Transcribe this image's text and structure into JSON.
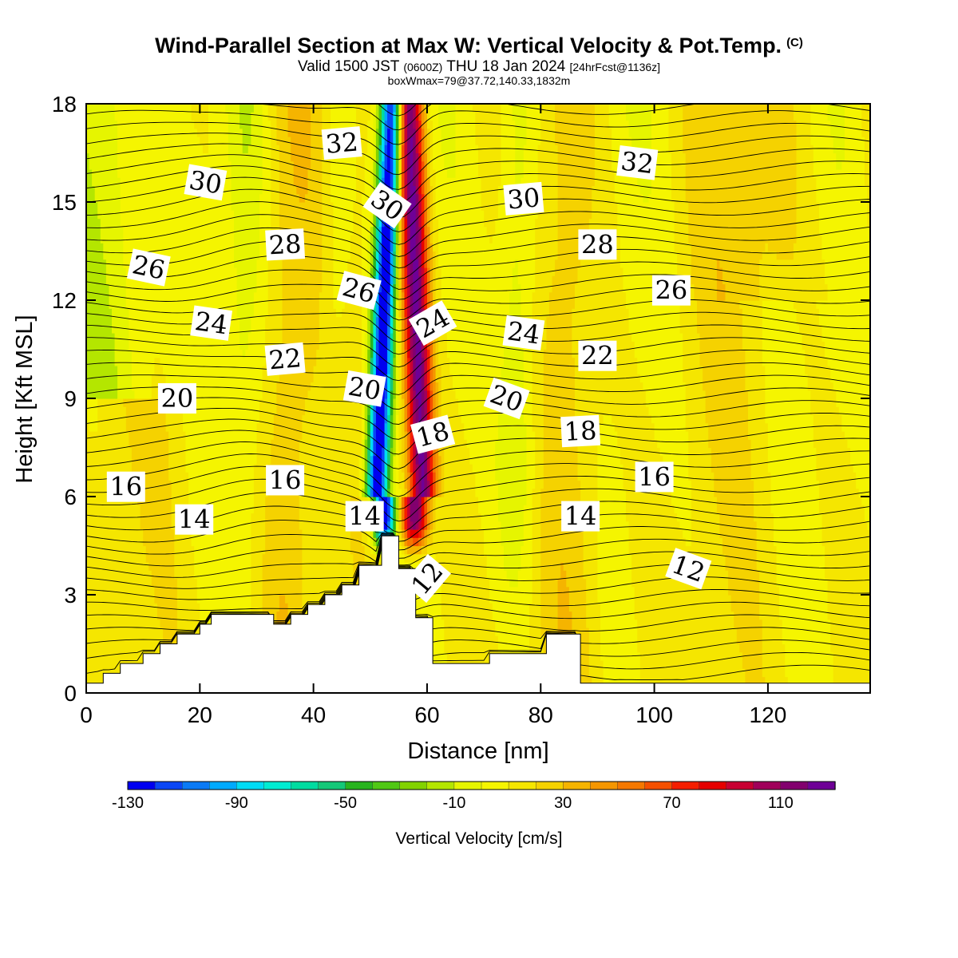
{
  "title": {
    "main": "Wind-Parallel Section at Max W: Vertical Velocity & Pot.Temp.",
    "copyright": "(C)",
    "valid_prefix": "Valid 1500 JST",
    "valid_utc": "(0600Z)",
    "valid_date": "THU 18 Jan 2024",
    "forecast": "[24hrFcst@1136z]",
    "box": "boxWmax=79@37.72,140.33,1832m"
  },
  "chart_data": {
    "type": "heatmap",
    "xlabel": "Distance [nm]",
    "ylabel": "Height [Kft MSL]",
    "xlim": [
      0,
      138
    ],
    "ylim": [
      0,
      18
    ],
    "xticks": [
      0,
      20,
      40,
      60,
      80,
      100,
      120
    ],
    "yticks": [
      0,
      3,
      6,
      9,
      12,
      15,
      18
    ],
    "colorbar": {
      "label": "Vertical Velocity [cm/s]",
      "tick_labels": [
        "-130",
        "-90",
        "-50",
        "-10",
        "30",
        "70",
        "110"
      ],
      "tick_values": [
        -130,
        -90,
        -50,
        -10,
        30,
        70,
        110
      ],
      "range": [
        -130,
        130
      ],
      "interval": 10,
      "colors": [
        "#0000f0",
        "#0a46f5",
        "#0a7af5",
        "#00aaff",
        "#00dcf5",
        "#00ecd2",
        "#00dca0",
        "#14c878",
        "#28b41e",
        "#50c814",
        "#82d200",
        "#b4e600",
        "#e6f500",
        "#f5f500",
        "#f5e600",
        "#f5d200",
        "#f5b400",
        "#f59600",
        "#f57800",
        "#f55000",
        "#f51e00",
        "#e60000",
        "#c80032",
        "#a0005a",
        "#82006e",
        "#6e0096"
      ]
    },
    "theta_contour_labels": [
      "12",
      "14",
      "16",
      "18",
      "20",
      "22",
      "24",
      "26",
      "28",
      "30",
      "32"
    ],
    "vertical_velocity_features": [
      {
        "name": "downdraft",
        "x_center": 51.5,
        "min_value": -130
      },
      {
        "name": "updraft",
        "x_center": 58.5,
        "max_value": 110
      },
      {
        "name": "boxWmax",
        "value": 79
      }
    ],
    "terrain_profile": {
      "x": [
        0,
        3,
        6,
        10,
        13,
        16,
        20,
        22,
        30,
        33,
        36,
        39,
        42,
        45,
        48,
        52,
        55,
        58,
        61,
        68,
        71,
        77,
        81,
        87,
        138
      ],
      "height_kft": [
        0.3,
        0.6,
        0.9,
        1.2,
        1.5,
        1.8,
        2.1,
        2.4,
        2.4,
        2.1,
        2.4,
        2.7,
        3.0,
        3.3,
        3.9,
        4.8,
        3.8,
        2.3,
        0.9,
        0.9,
        1.2,
        1.2,
        1.8,
        0.3,
        0.3
      ]
    }
  }
}
